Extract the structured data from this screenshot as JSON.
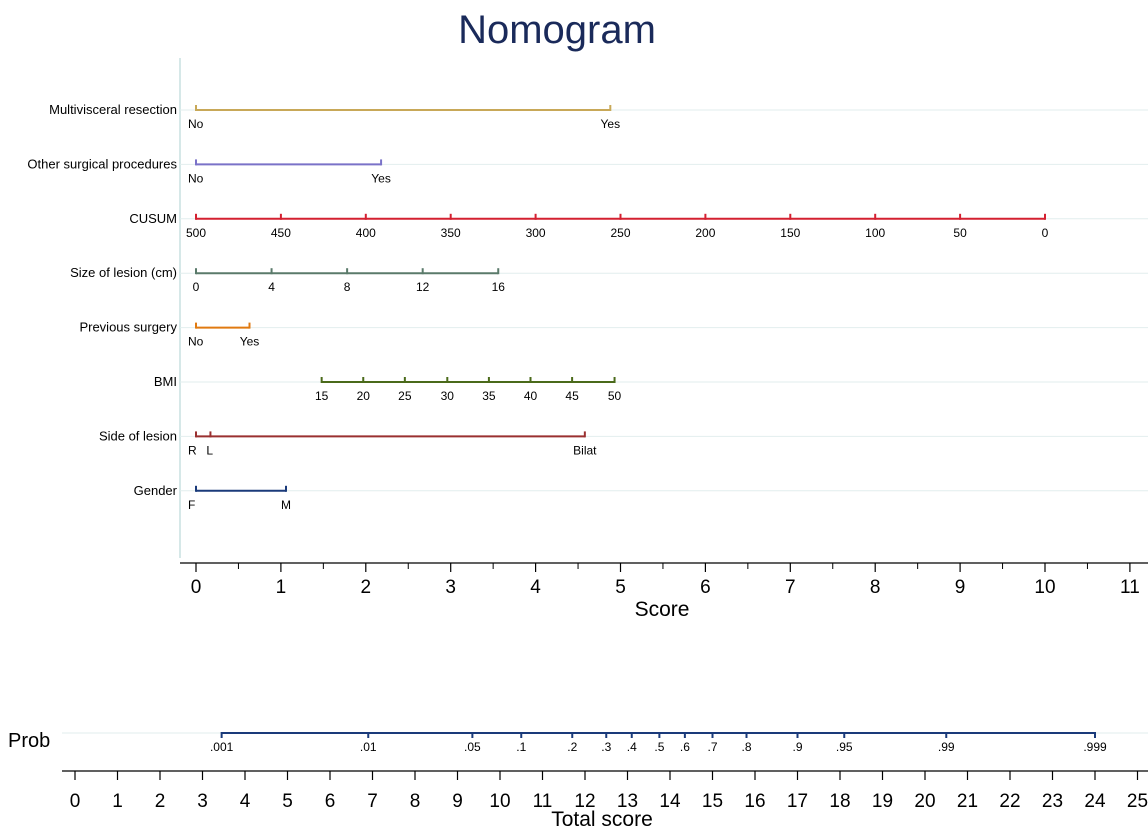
{
  "chart_data": {
    "type": "nomogram",
    "title": "Nomogram",
    "score_axis": {
      "label": "Score",
      "ticks": [
        0,
        1,
        2,
        3,
        4,
        5,
        6,
        7,
        8,
        9,
        10,
        11
      ]
    },
    "variables": [
      {
        "name": "Multivisceral resection",
        "color": "#c8a858",
        "points": [
          {
            "label": "No",
            "score": 0
          },
          {
            "label": "Yes",
            "score": 4.88
          }
        ]
      },
      {
        "name": "Other surgical procedures",
        "color": "#7a72c8",
        "points": [
          {
            "label": "No",
            "score": 0
          },
          {
            "label": "Yes",
            "score": 2.18
          }
        ]
      },
      {
        "name": "CUSUM",
        "color": "#d42030",
        "points": [
          {
            "label": "500",
            "score": 0
          },
          {
            "label": "450",
            "score": 1
          },
          {
            "label": "400",
            "score": 2
          },
          {
            "label": "350",
            "score": 3
          },
          {
            "label": "300",
            "score": 4
          },
          {
            "label": "250",
            "score": 5
          },
          {
            "label": "200",
            "score": 6
          },
          {
            "label": "150",
            "score": 7
          },
          {
            "label": "100",
            "score": 8
          },
          {
            "label": "50",
            "score": 9
          },
          {
            "label": "0",
            "score": 10
          }
        ]
      },
      {
        "name": "Size of lesion (cm)",
        "color": "#5a7a6a",
        "points": [
          {
            "label": "0",
            "score": 0
          },
          {
            "label": "4",
            "score": 0.89
          },
          {
            "label": "8",
            "score": 1.78
          },
          {
            "label": "12",
            "score": 2.67
          },
          {
            "label": "16",
            "score": 3.56
          }
        ]
      },
      {
        "name": "Previous surgery",
        "color": "#e07a10",
        "points": [
          {
            "label": "No",
            "score": 0
          },
          {
            "label": "Yes",
            "score": 0.63
          }
        ]
      },
      {
        "name": "BMI",
        "color": "#4a6a1a",
        "points": [
          {
            "label": "15",
            "score": 1.48
          },
          {
            "label": "20",
            "score": 1.97
          },
          {
            "label": "25",
            "score": 2.46
          },
          {
            "label": "30",
            "score": 2.96
          },
          {
            "label": "35",
            "score": 3.45
          },
          {
            "label": "40",
            "score": 3.94
          },
          {
            "label": "45",
            "score": 4.43
          },
          {
            "label": "50",
            "score": 4.93
          }
        ]
      },
      {
        "name": "Side of lesion",
        "color": "#9a3030",
        "points": [
          {
            "label": "R",
            "score": 0
          },
          {
            "label": "L",
            "score": 0.17
          },
          {
            "label": "Bilat",
            "score": 4.58
          }
        ]
      },
      {
        "name": "Gender",
        "color": "#1a3a7a",
        "points": [
          {
            "label": "F",
            "score": 0
          },
          {
            "label": "M",
            "score": 1.06
          }
        ]
      }
    ],
    "prob_axis": {
      "label": "Prob",
      "color": "#1a3a7a",
      "points": [
        {
          "label": ".001",
          "total": 3.45
        },
        {
          "label": ".01",
          "total": 6.9
        },
        {
          "label": ".05",
          "total": 9.35
        },
        {
          "label": ".1",
          "total": 10.5
        },
        {
          "label": ".2",
          "total": 11.7
        },
        {
          "label": ".3",
          "total": 12.5
        },
        {
          "label": ".4",
          "total": 13.1
        },
        {
          "label": ".5",
          "total": 13.75
        },
        {
          "label": ".6",
          "total": 14.35
        },
        {
          "label": ".7",
          "total": 15.0
        },
        {
          "label": ".8",
          "total": 15.8
        },
        {
          "label": ".9",
          "total": 17.0
        },
        {
          "label": ".95",
          "total": 18.1
        },
        {
          "label": ".99",
          "total": 20.5
        },
        {
          "label": ".999",
          "total": 24.0
        }
      ]
    },
    "total_axis": {
      "label": "Total score",
      "ticks": [
        0,
        1,
        2,
        3,
        4,
        5,
        6,
        7,
        8,
        9,
        10,
        11,
        12,
        13,
        14,
        15,
        16,
        17,
        18,
        19,
        20,
        21,
        22,
        23,
        24,
        25
      ]
    }
  }
}
